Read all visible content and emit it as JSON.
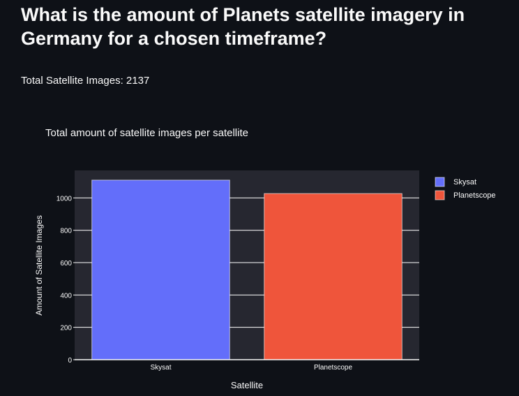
{
  "header": {
    "title": "What is the amount of Planets satellite imagery in Germany for a chosen timeframe?",
    "total_label": "Total Satellite Images: 2137"
  },
  "chart_data": {
    "type": "bar",
    "title": "Total amount of satellite images per satellite",
    "xlabel": "Satellite",
    "ylabel": "Amount of Satellite Images",
    "categories": [
      "Skysat",
      "Planetscope"
    ],
    "series": [
      {
        "name": "Skysat",
        "values": [
          1110,
          null
        ],
        "color": "#636efa"
      },
      {
        "name": "Planetscope",
        "values": [
          null,
          1027
        ],
        "color": "#ef553b"
      }
    ],
    "ylim": [
      0,
      1170
    ],
    "yticks": [
      0,
      200,
      400,
      600,
      800,
      1000
    ],
    "grid": true,
    "legend_position": "top-right",
    "plot_bgcolor": "#262730"
  }
}
